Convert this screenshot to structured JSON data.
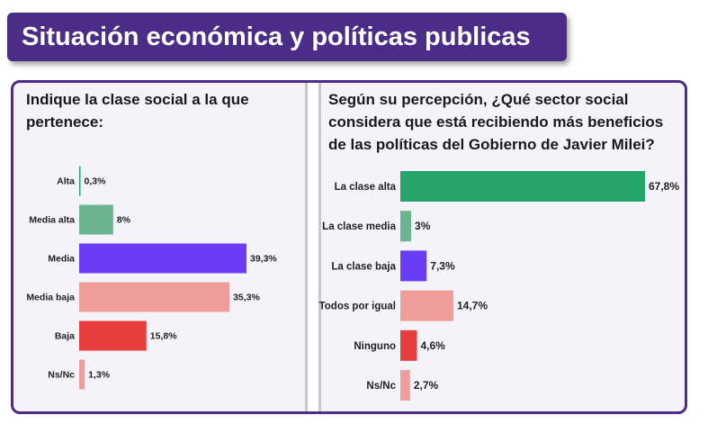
{
  "header": {
    "title": "Situación económica y políticas publicas"
  },
  "left": {
    "question": "Indique la clase social a la que pertenece:"
  },
  "right": {
    "question": "Según su percepción, ¿Qué sector social considera que está recibiendo más beneficios de las políticas del Gobierno de Javier Milei?"
  },
  "colors": {
    "accent": "#4b2c86",
    "panel_bg": "#f4f3f9",
    "green": "#26a56b",
    "light_green": "#6ab58f",
    "purple": "#6a3cf5",
    "pink": "#ef9d9b",
    "red": "#e83d3d"
  },
  "chart_data": [
    {
      "type": "bar",
      "orientation": "horizontal",
      "categories": [
        "Alta",
        "Media alta",
        "Media",
        "Media baja",
        "Baja",
        "Ns/Nc"
      ],
      "values": [
        0.3,
        8,
        39.3,
        35.3,
        15.8,
        1.3
      ],
      "value_labels": [
        "0,3%",
        "8%",
        "39,3%",
        "35,3%",
        "15,8%",
        "1,3%"
      ],
      "colors": [
        "#26a56b",
        "#6ab58f",
        "#6a3cf5",
        "#ef9d9b",
        "#e83d3d",
        "#ef9d9b"
      ],
      "title": "Indique la clase social a la que pertenece:",
      "xlim": [
        0,
        39.3
      ]
    },
    {
      "type": "bar",
      "orientation": "horizontal",
      "categories": [
        "La clase alta",
        "La clase media",
        "La clase baja",
        "Todos por igual",
        "Ninguno",
        "Ns/Nc"
      ],
      "values": [
        67.8,
        3,
        7.3,
        14.7,
        4.6,
        2.7
      ],
      "value_labels": [
        "67,8%",
        "3%",
        "7,3%",
        "14,7%",
        "4,6%",
        "2,7%"
      ],
      "colors": [
        "#26a56b",
        "#6ab58f",
        "#6a3cf5",
        "#ef9d9b",
        "#e83d3d",
        "#ef9d9b"
      ],
      "title": "Según su percepción, ¿Qué sector social considera que está recibiendo más beneficios de las políticas del Gobierno de Javier Milei?",
      "xlim": [
        0,
        67.8
      ]
    }
  ]
}
